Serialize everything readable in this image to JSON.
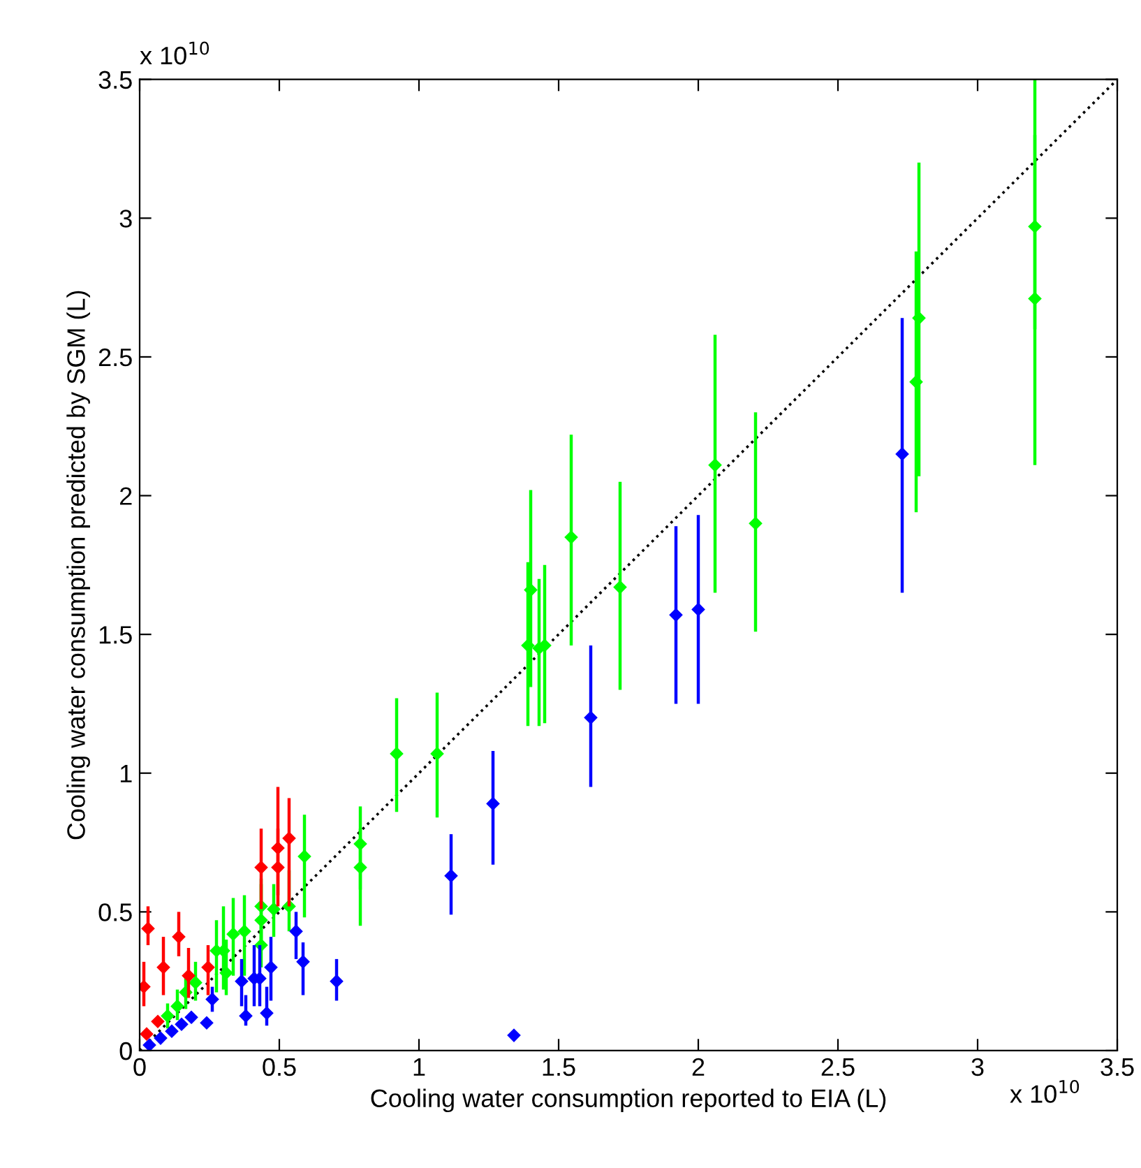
{
  "chart_data": {
    "type": "scatter",
    "xlabel": "Cooling water consumption reported to EIA (L)",
    "ylabel": "Cooling water consumption predicted by SGM (L)",
    "annotations": [
      "x 10$^{10}$",
      "x 10$^{10}$"
    ],
    "xlim": [
      0,
      3.5
    ],
    "ylim": [
      0,
      3.5
    ],
    "xticks": [
      0,
      0.5,
      1,
      1.5,
      2,
      2.5,
      3,
      3.5
    ],
    "yticks": [
      0,
      0.5,
      1,
      1.5,
      2,
      2.5,
      3,
      3.5
    ],
    "grid": false,
    "marker": "diamond",
    "series": [
      {
        "type": "line",
        "color": "#000000",
        "line_style": "dotted",
        "marker": "none",
        "x": [
          0,
          3.5
        ],
        "values": [
          0,
          3.5
        ]
      },
      {
        "color": "#00ff00",
        "x": [
          3.205,
          3.205,
          2.79,
          2.78,
          2.205,
          2.06,
          1.72,
          1.545,
          1.4,
          1.39,
          1.43,
          1.45,
          1.065,
          0.92,
          0.79,
          0.79,
          0.59,
          0.535,
          0.48,
          0.435,
          0.435,
          0.435,
          0.375,
          0.335,
          0.3,
          0.275,
          0.31,
          0.2,
          0.165,
          0.135,
          0.1
        ],
        "values": [
          2.97,
          2.71,
          2.64,
          2.41,
          1.9,
          2.11,
          1.67,
          1.85,
          1.66,
          1.46,
          1.45,
          1.46,
          1.07,
          1.07,
          0.745,
          0.66,
          0.7,
          0.52,
          0.51,
          0.52,
          0.47,
          0.38,
          0.43,
          0.42,
          0.36,
          0.36,
          0.28,
          0.245,
          0.21,
          0.16,
          0.125
        ],
        "errors": [
          [
            2.6,
            3.5
          ],
          [
            2.11,
            3.3
          ],
          [
            2.07,
            3.2
          ],
          [
            1.94,
            2.88
          ],
          [
            1.51,
            2.3
          ],
          [
            1.65,
            2.58
          ],
          [
            1.3,
            2.05
          ],
          [
            1.46,
            2.22
          ],
          [
            1.31,
            2.02
          ],
          [
            1.17,
            1.76
          ],
          [
            1.17,
            1.7
          ],
          [
            1.18,
            1.75
          ],
          [
            0.84,
            1.29
          ],
          [
            0.86,
            1.27
          ],
          [
            0.58,
            0.88
          ],
          [
            0.45,
            0.8
          ],
          [
            0.48,
            0.85
          ],
          [
            0.43,
            0.65
          ],
          [
            0.41,
            0.6
          ],
          [
            0.4,
            0.62
          ],
          [
            0.36,
            0.6
          ],
          [
            0.3,
            0.46
          ],
          [
            0.27,
            0.56
          ],
          [
            0.27,
            0.55
          ],
          [
            0.22,
            0.52
          ],
          [
            0.21,
            0.47
          ],
          [
            0.2,
            0.4
          ],
          [
            0.18,
            0.32
          ],
          [
            0.15,
            0.27
          ],
          [
            0.11,
            0.22
          ],
          [
            0.08,
            0.17
          ]
        ]
      },
      {
        "color": "#0000ff",
        "x": [
          2.73,
          2.0,
          1.92,
          1.615,
          1.265,
          1.115,
          1.34,
          0.56,
          0.585,
          0.705,
          0.47,
          0.43,
          0.41,
          0.455,
          0.38,
          0.365,
          0.26,
          0.24,
          0.185,
          0.15,
          0.115,
          0.075,
          0.035
        ],
        "values": [
          2.15,
          1.59,
          1.57,
          1.2,
          0.89,
          0.63,
          0.055,
          0.43,
          0.32,
          0.25,
          0.3,
          0.26,
          0.26,
          0.135,
          0.125,
          0.25,
          0.185,
          0.1,
          0.12,
          0.095,
          0.07,
          0.045,
          0.02
        ],
        "errors": [
          [
            1.65,
            2.64
          ],
          [
            1.25,
            1.93
          ],
          [
            1.25,
            1.89
          ],
          [
            0.95,
            1.46
          ],
          [
            0.67,
            1.08
          ],
          [
            0.49,
            0.78
          ],
          null,
          [
            0.33,
            0.5
          ],
          [
            0.2,
            0.39
          ],
          [
            0.18,
            0.33
          ],
          [
            0.18,
            0.41
          ],
          [
            0.16,
            0.38
          ],
          [
            0.16,
            0.38
          ],
          [
            0.09,
            0.23
          ],
          [
            0.09,
            0.2
          ],
          [
            0.16,
            0.33
          ],
          [
            0.14,
            0.23
          ],
          null,
          null,
          null,
          null,
          null,
          null
        ]
      },
      {
        "color": "#ff0000",
        "x": [
          0.535,
          0.495,
          0.495,
          0.435,
          0.245,
          0.175,
          0.14,
          0.085,
          0.03,
          0.015,
          0.065,
          0.025
        ],
        "values": [
          0.765,
          0.73,
          0.66,
          0.66,
          0.3,
          0.27,
          0.41,
          0.3,
          0.44,
          0.23,
          0.105,
          0.06
        ],
        "errors": [
          [
            0.52,
            0.91
          ],
          [
            0.56,
            0.95
          ],
          [
            0.52,
            0.8
          ],
          [
            0.51,
            0.8
          ],
          [
            0.2,
            0.38
          ],
          [
            0.19,
            0.37
          ],
          [
            0.34,
            0.5
          ],
          [
            0.2,
            0.41
          ],
          [
            0.38,
            0.52
          ],
          [
            0.16,
            0.32
          ],
          null,
          null
        ]
      }
    ]
  }
}
